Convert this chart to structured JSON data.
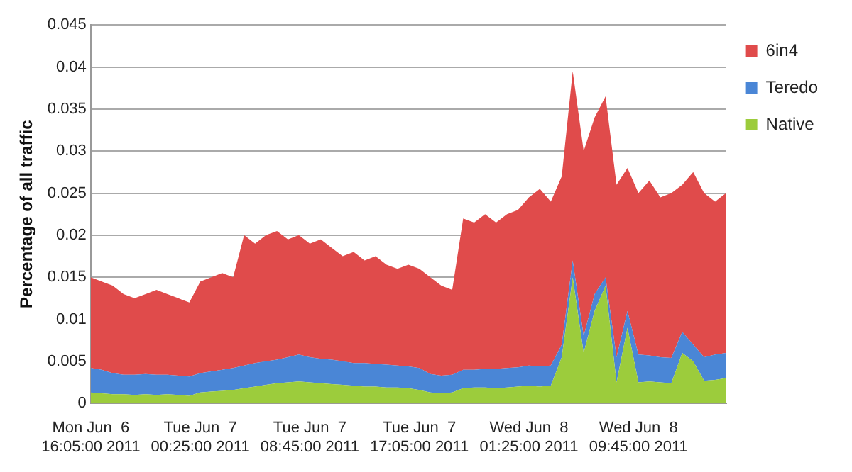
{
  "chart_data": {
    "type": "area",
    "stacked": true,
    "ylabel": "Percentage of all traffic",
    "x": [
      "2011-06-06T16:05",
      "2011-06-06T16:55",
      "2011-06-06T17:45",
      "2011-06-06T18:35",
      "2011-06-06T19:25",
      "2011-06-06T20:15",
      "2011-06-06T21:05",
      "2011-06-06T21:55",
      "2011-06-06T22:45",
      "2011-06-06T23:35",
      "2011-06-07T00:25",
      "2011-06-07T01:15",
      "2011-06-07T02:05",
      "2011-06-07T02:55",
      "2011-06-07T03:45",
      "2011-06-07T04:35",
      "2011-06-07T05:25",
      "2011-06-07T06:15",
      "2011-06-07T07:05",
      "2011-06-07T07:55",
      "2011-06-07T08:45",
      "2011-06-07T09:35",
      "2011-06-07T10:25",
      "2011-06-07T11:15",
      "2011-06-07T12:05",
      "2011-06-07T12:55",
      "2011-06-07T13:45",
      "2011-06-07T14:35",
      "2011-06-07T15:25",
      "2011-06-07T16:15",
      "2011-06-07T17:05",
      "2011-06-07T17:55",
      "2011-06-07T18:45",
      "2011-06-07T19:35",
      "2011-06-07T20:25",
      "2011-06-07T21:15",
      "2011-06-07T22:05",
      "2011-06-07T22:55",
      "2011-06-07T23:45",
      "2011-06-08T00:35",
      "2011-06-08T01:25",
      "2011-06-08T02:15",
      "2011-06-08T03:05",
      "2011-06-08T03:55",
      "2011-06-08T04:45",
      "2011-06-08T05:35",
      "2011-06-08T06:25",
      "2011-06-08T07:15",
      "2011-06-08T08:05",
      "2011-06-08T08:55",
      "2011-06-08T09:45",
      "2011-06-08T10:35",
      "2011-06-08T11:25",
      "2011-06-08T12:15",
      "2011-06-08T13:05",
      "2011-06-08T13:55",
      "2011-06-08T14:45",
      "2011-06-08T15:35",
      "2011-06-08T16:25"
    ],
    "series": [
      {
        "name": "Native",
        "color": "#9ccc3c",
        "values": [
          0.0013,
          0.0012,
          0.0011,
          0.0011,
          0.001,
          0.0011,
          0.001,
          0.0011,
          0.001,
          0.0009,
          0.0013,
          0.0014,
          0.0015,
          0.0016,
          0.0018,
          0.002,
          0.0022,
          0.0024,
          0.0025,
          0.0026,
          0.0025,
          0.0024,
          0.0023,
          0.0022,
          0.0021,
          0.002,
          0.002,
          0.0019,
          0.0019,
          0.0018,
          0.0016,
          0.0013,
          0.0012,
          0.0013,
          0.0018,
          0.0019,
          0.0019,
          0.0018,
          0.0019,
          0.002,
          0.0021,
          0.002,
          0.0021,
          0.0055,
          0.015,
          0.006,
          0.011,
          0.014,
          0.0025,
          0.009,
          0.0025,
          0.0026,
          0.0025,
          0.0024,
          0.006,
          0.005,
          0.0027,
          0.0028,
          0.003
        ]
      },
      {
        "name": "Teredo",
        "color": "#4a86d6",
        "values": [
          0.0029,
          0.0028,
          0.0025,
          0.0023,
          0.0024,
          0.0024,
          0.0024,
          0.0023,
          0.0023,
          0.0023,
          0.0023,
          0.0024,
          0.0025,
          0.0026,
          0.0027,
          0.0028,
          0.0028,
          0.0028,
          0.003,
          0.0032,
          0.003,
          0.0029,
          0.0029,
          0.0028,
          0.0027,
          0.0028,
          0.0027,
          0.0027,
          0.0026,
          0.0026,
          0.0026,
          0.0022,
          0.0021,
          0.0021,
          0.0022,
          0.0021,
          0.0022,
          0.0023,
          0.0023,
          0.0023,
          0.0024,
          0.0024,
          0.0024,
          0.0015,
          0.002,
          0.002,
          0.002,
          0.001,
          0.003,
          0.002,
          0.0033,
          0.0031,
          0.003,
          0.003,
          0.0025,
          0.002,
          0.0028,
          0.003,
          0.003
        ]
      },
      {
        "name": "6in4",
        "color": "#e04b4b",
        "values": [
          0.0108,
          0.0105,
          0.0104,
          0.0096,
          0.0091,
          0.0095,
          0.0101,
          0.0096,
          0.0092,
          0.0088,
          0.0109,
          0.0112,
          0.0115,
          0.0108,
          0.0155,
          0.0142,
          0.015,
          0.0153,
          0.014,
          0.0142,
          0.0135,
          0.0142,
          0.0133,
          0.0125,
          0.0132,
          0.0122,
          0.0128,
          0.0119,
          0.0115,
          0.0121,
          0.0118,
          0.0115,
          0.0107,
          0.0101,
          0.018,
          0.0175,
          0.0184,
          0.0174,
          0.0183,
          0.0187,
          0.02,
          0.0211,
          0.0195,
          0.02,
          0.0225,
          0.022,
          0.021,
          0.0215,
          0.0205,
          0.017,
          0.0192,
          0.0208,
          0.019,
          0.0196,
          0.0175,
          0.0205,
          0.0195,
          0.0182,
          0.019
        ]
      }
    ],
    "xlim": [
      "2011-06-06T16:05",
      "2011-06-08T16:25"
    ],
    "xticks": [
      {
        "value": "2011-06-06T16:05",
        "label": "Mon Jun  6\n16:05:00 2011"
      },
      {
        "value": "2011-06-07T00:25",
        "label": "Tue Jun  7\n00:25:00 2011"
      },
      {
        "value": "2011-06-07T08:45",
        "label": "Tue Jun  7\n08:45:00 2011"
      },
      {
        "value": "2011-06-07T17:05",
        "label": "Tue Jun  7\n17:05:00 2011"
      },
      {
        "value": "2011-06-08T01:25",
        "label": "Wed Jun  8\n01:25:00 2011"
      },
      {
        "value": "2011-06-08T09:45",
        "label": "Wed Jun  8\n09:45:00 2011"
      }
    ],
    "ylim": [
      0,
      0.045
    ],
    "yticks": [
      0,
      0.005,
      0.01,
      0.015,
      0.02,
      0.025,
      0.03,
      0.035,
      0.04,
      0.045
    ],
    "grid": "y",
    "legend": "top right"
  }
}
